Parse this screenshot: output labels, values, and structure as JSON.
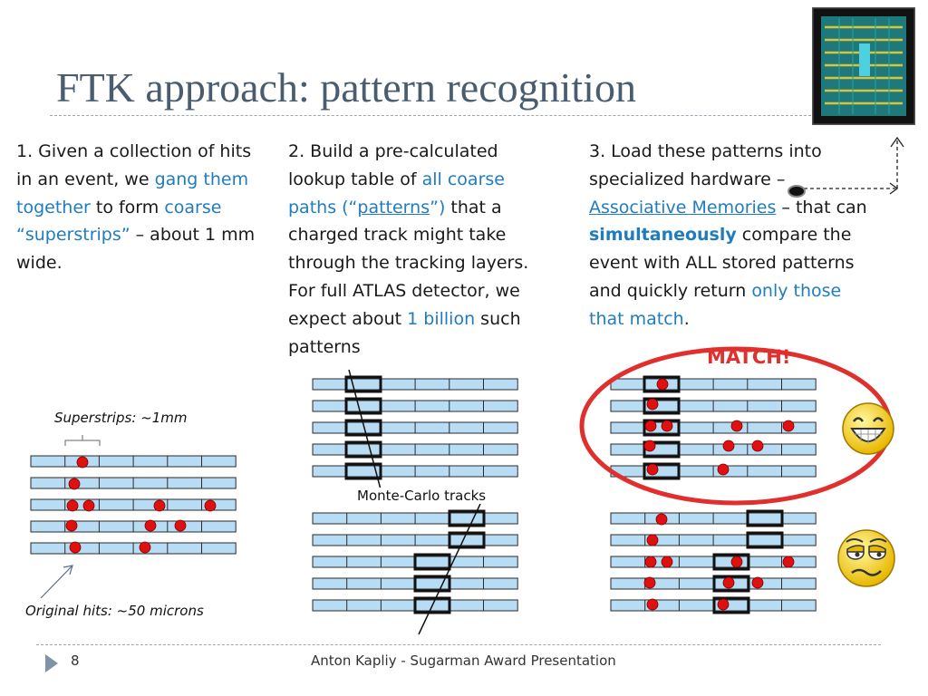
{
  "title": "FTK approach: pattern recognition",
  "col1": {
    "t1": "1. Given a collection of hits in an event, we ",
    "h1": "gang them together",
    "t2": " to form ",
    "h2": "coarse “superstrips”",
    "t3": " – about 1 mm wide."
  },
  "col2": {
    "t1": "2. Build a pre-calculated lookup table of ",
    "h1": "all coarse paths (“",
    "h2": "patterns",
    "h3": "”)",
    "t2": " that a charged track might take through the tracking layers. For full ATLAS detector, we expect about ",
    "h4": "1 billion",
    "t3": " such patterns"
  },
  "col3": {
    "t1": "3. Load these patterns into specialized hardware – ",
    "h1": "Associative Memories",
    "t2": " – that can ",
    "h2": "simultaneously",
    "t3": " compare the event with ALL stored patterns and quickly return ",
    "h3": "only those that match",
    "t4": "."
  },
  "labels": {
    "superstrips": "Superstrips: ~1mm",
    "original_hits": "Original hits: ~50 microns",
    "monte_carlo": "Monte-Carlo tracks",
    "match": "MATCH!"
  },
  "footer": {
    "page": "8",
    "text": "Anton Kapliy - Sugarman Award Presentation"
  },
  "colors": {
    "title": "#4a5d70",
    "highlight": "#1f7cc0",
    "match": "#e0302e",
    "strip_fill": "#b8dcf4",
    "hit": "#e01010"
  },
  "icons": {
    "chip": "fpga-chip-icon",
    "happy": "grinning-face-icon",
    "unhappy": "unamused-face-icon"
  }
}
